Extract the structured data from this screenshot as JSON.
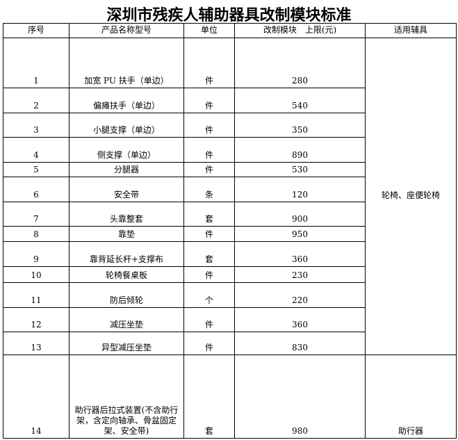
{
  "title": "深圳市残疾人辅助器具改制模块标准",
  "headers": [
    "序号",
    "产品名称型号",
    "单位",
    "改制模块　上限(元)",
    "适用辅具"
  ],
  "rows": [
    {
      "no": "1",
      "name": "加宽 PU 扶手（单边）",
      "unit": "件",
      "limit": "280"
    },
    {
      "no": "2",
      "name": "偏瘫扶手（单边）",
      "unit": "件",
      "limit": "540"
    },
    {
      "no": "3",
      "name": "小腿支撑（单边）",
      "unit": "件",
      "limit": "350"
    },
    {
      "no": "4",
      "name": "侧支撑（单边）",
      "unit": "件",
      "limit": "890"
    },
    {
      "no": "5",
      "name": "分腿器",
      "unit": "件",
      "limit": "530"
    },
    {
      "no": "6",
      "name": "安全带",
      "unit": "条",
      "limit": "120"
    },
    {
      "no": "7",
      "name": "头靠整套",
      "unit": "套",
      "limit": "900"
    },
    {
      "no": "8",
      "name": "靠垫",
      "unit": "件",
      "limit": "950"
    },
    {
      "no": "9",
      "name": "靠背延长杆+支撑布",
      "unit": "套",
      "limit": "360"
    },
    {
      "no": "10",
      "name": "轮椅餐桌板",
      "unit": "件",
      "limit": "230"
    },
    {
      "no": "11",
      "name": "防后倾轮",
      "unit": "个",
      "limit": "220"
    },
    {
      "no": "12",
      "name": "减压坐垫",
      "unit": "件",
      "limit": "360"
    },
    {
      "no": "13",
      "name": "异型减压坐垫",
      "unit": "件",
      "limit": "830"
    },
    {
      "no": "14",
      "name": "助行器后拉式装置(不含助行架，含定向轴承、骨盆固定架、安全带)",
      "unit": "套",
      "limit": "980"
    }
  ],
  "groups": {
    "wheelchair": "轮椅、座便轮椅",
    "walker": "助行器"
  }
}
